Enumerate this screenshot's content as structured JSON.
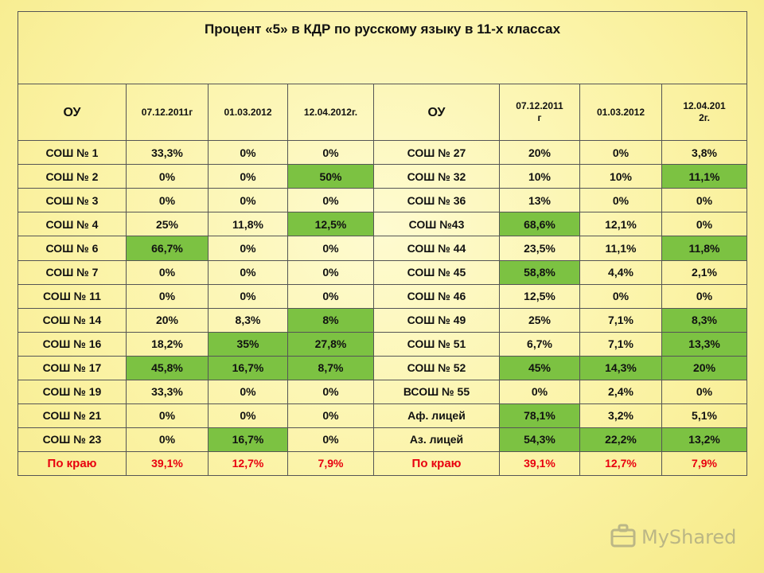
{
  "title": "Процент «5» в КДР по русскому языку в 11-х классах",
  "headers": {
    "ou_left": "ОУ",
    "date1_left": "07.12.2011г",
    "date2_left": "01.03.2012",
    "date3_left": "12.04.2012г.",
    "ou_right": "ОУ",
    "date1_right": "07.12.2011\nг",
    "date2_right": "01.03.2012",
    "date3_right": "12.04.201\n2г."
  },
  "highlight_color": "#7cc242",
  "total_color": "#e8000f",
  "rows": [
    {
      "ls": "СОШ № 1",
      "l": [
        "33,3%",
        "0%",
        "0%"
      ],
      "lh": [
        0,
        0,
        0
      ],
      "rs": "СОШ № 27",
      "r": [
        "20%",
        "0%",
        "3,8%"
      ],
      "rh": [
        0,
        0,
        0
      ]
    },
    {
      "ls": "СОШ № 2",
      "l": [
        "0%",
        "0%",
        "50%"
      ],
      "lh": [
        0,
        0,
        1
      ],
      "rs": "СОШ № 32",
      "r": [
        "10%",
        "10%",
        "11,1%"
      ],
      "rh": [
        0,
        0,
        1
      ]
    },
    {
      "ls": "СОШ № 3",
      "l": [
        "0%",
        "0%",
        "0%"
      ],
      "lh": [
        0,
        0,
        0
      ],
      "rs": "СОШ № 36",
      "r": [
        "13%",
        "0%",
        "0%"
      ],
      "rh": [
        0,
        0,
        0
      ]
    },
    {
      "ls": "СОШ № 4",
      "l": [
        "25%",
        "11,8%",
        "12,5%"
      ],
      "lh": [
        0,
        0,
        1
      ],
      "rs": "СОШ №43",
      "r": [
        "68,6%",
        "12,1%",
        "0%"
      ],
      "rh": [
        1,
        0,
        0
      ]
    },
    {
      "ls": "СОШ № 6",
      "l": [
        "66,7%",
        "0%",
        "0%"
      ],
      "lh": [
        1,
        0,
        0
      ],
      "rs": "СОШ № 44",
      "r": [
        "23,5%",
        "11,1%",
        "11,8%"
      ],
      "rh": [
        0,
        0,
        1
      ]
    },
    {
      "ls": "СОШ № 7",
      "l": [
        "0%",
        "0%",
        "0%"
      ],
      "lh": [
        0,
        0,
        0
      ],
      "rs": "СОШ № 45",
      "r": [
        "58,8%",
        "4,4%",
        "2,1%"
      ],
      "rh": [
        1,
        0,
        0
      ]
    },
    {
      "ls": "СОШ № 11",
      "l": [
        "0%",
        "0%",
        "0%"
      ],
      "lh": [
        0,
        0,
        0
      ],
      "rs": "СОШ № 46",
      "r": [
        "12,5%",
        "0%",
        "0%"
      ],
      "rh": [
        0,
        0,
        0
      ]
    },
    {
      "ls": "СОШ № 14",
      "l": [
        "20%",
        "8,3%",
        "8%"
      ],
      "lh": [
        0,
        0,
        1
      ],
      "rs": "СОШ №  49",
      "r": [
        "25%",
        "7,1%",
        "8,3%"
      ],
      "rh": [
        0,
        0,
        1
      ]
    },
    {
      "ls": "СОШ № 16",
      "l": [
        "18,2%",
        "35%",
        "27,8%"
      ],
      "lh": [
        0,
        1,
        1
      ],
      "rs": "СОШ № 51",
      "r": [
        "6,7%",
        "7,1%",
        "13,3%"
      ],
      "rh": [
        0,
        0,
        1
      ]
    },
    {
      "ls": "СОШ № 17",
      "l": [
        "45,8%",
        "16,7%",
        "8,7%"
      ],
      "lh": [
        1,
        1,
        1
      ],
      "rs": "СОШ № 52",
      "r": [
        "45%",
        "14,3%",
        "20%"
      ],
      "rh": [
        1,
        1,
        1
      ]
    },
    {
      "ls": "СОШ № 19",
      "l": [
        "33,3%",
        "0%",
        "0%"
      ],
      "lh": [
        0,
        0,
        0
      ],
      "rs": "ВСОШ № 55",
      "r": [
        "0%",
        "2,4%",
        "0%"
      ],
      "rh": [
        0,
        0,
        0
      ]
    },
    {
      "ls": "СОШ № 21",
      "l": [
        "0%",
        "0%",
        "0%"
      ],
      "lh": [
        0,
        0,
        0
      ],
      "rs": "Аф. лицей",
      "r": [
        "78,1%",
        "3,2%",
        "5,1%"
      ],
      "rh": [
        1,
        0,
        0
      ]
    },
    {
      "ls": "СОШ № 23",
      "l": [
        "0%",
        "16,7%",
        "0%"
      ],
      "lh": [
        0,
        1,
        0
      ],
      "rs": "Аз. лицей",
      "r": [
        "54,3%",
        "22,2%",
        "13,2%"
      ],
      "rh": [
        1,
        1,
        1
      ]
    }
  ],
  "total": {
    "ls": "По краю",
    "l": [
      "39,1%",
      "12,7%",
      "7,9%"
    ],
    "rs": "По краю",
    "r": [
      "39,1%",
      "12,7%",
      "7,9%"
    ]
  },
  "watermark": {
    "text": "MyShared",
    "icon": "briefcase-icon"
  }
}
